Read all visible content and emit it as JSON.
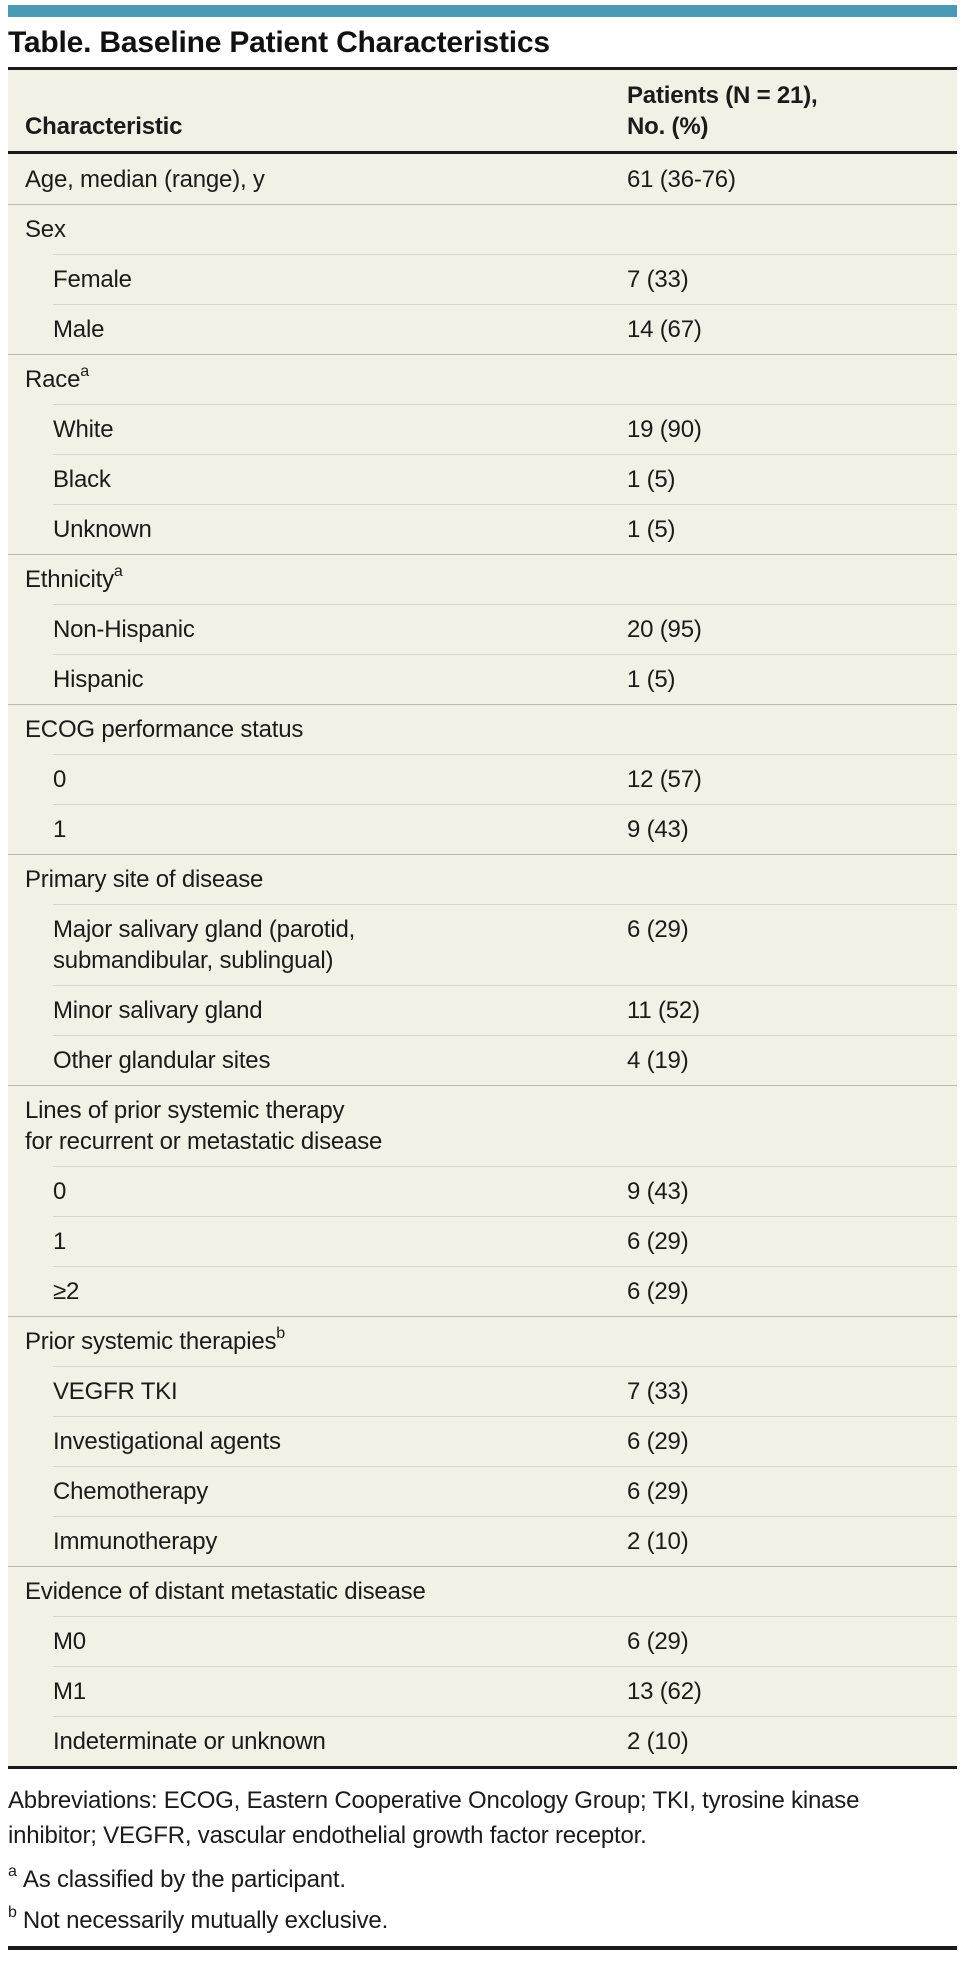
{
  "style": {
    "accent_color": "#4a9ab4",
    "table_background": "#f3f1e6",
    "rule_color": "#1a1a1a"
  },
  "title": "Table. Baseline Patient Characteristics",
  "table": {
    "header": {
      "col1": "Characteristic",
      "col2": "Patients (N = 21),\nNo. (%)"
    },
    "rows": [
      {
        "label": "Age, median (range), y",
        "value": "61 (36-76)",
        "indent": 0
      },
      {
        "label": "Sex",
        "value": "",
        "indent": 0
      },
      {
        "label": "Female",
        "value": "7 (33)",
        "indent": 1
      },
      {
        "label": "Male",
        "value": "14 (67)",
        "indent": 1
      },
      {
        "label": "Race",
        "sup": "a",
        "value": "",
        "indent": 0
      },
      {
        "label": "White",
        "value": "19 (90)",
        "indent": 1
      },
      {
        "label": "Black",
        "value": "1 (5)",
        "indent": 1
      },
      {
        "label": "Unknown",
        "value": "1 (5)",
        "indent": 1
      },
      {
        "label": "Ethnicity",
        "sup": "a",
        "value": "",
        "indent": 0
      },
      {
        "label": "Non-Hispanic",
        "value": "20 (95)",
        "indent": 1
      },
      {
        "label": "Hispanic",
        "value": "1 (5)",
        "indent": 1
      },
      {
        "label": "ECOG performance status",
        "value": "",
        "indent": 0
      },
      {
        "label": "0",
        "value": "12 (57)",
        "indent": 1
      },
      {
        "label": "1",
        "value": "9 (43)",
        "indent": 1
      },
      {
        "label": "Primary site of disease",
        "value": "",
        "indent": 0
      },
      {
        "label": "Major salivary gland (parotid,\nsubmandibular, sublingual)",
        "value": "6 (29)",
        "indent": 1
      },
      {
        "label": "Minor salivary gland",
        "value": "11 (52)",
        "indent": 1
      },
      {
        "label": "Other glandular sites",
        "value": "4 (19)",
        "indent": 1
      },
      {
        "label": "Lines of prior systemic therapy\nfor recurrent or metastatic disease",
        "value": "",
        "indent": 0
      },
      {
        "label": "0",
        "value": "9 (43)",
        "indent": 1
      },
      {
        "label": "1",
        "value": "6 (29)",
        "indent": 1
      },
      {
        "label": "≥2",
        "value": "6 (29)",
        "indent": 1
      },
      {
        "label": "Prior systemic therapies",
        "sup": "b",
        "value": "",
        "indent": 0
      },
      {
        "label": "VEGFR TKI",
        "value": "7 (33)",
        "indent": 1
      },
      {
        "label": "Investigational agents",
        "value": "6 (29)",
        "indent": 1
      },
      {
        "label": "Chemotherapy",
        "value": "6 (29)",
        "indent": 1
      },
      {
        "label": "Immunotherapy",
        "value": "2 (10)",
        "indent": 1
      },
      {
        "label": "Evidence of distant metastatic disease",
        "value": "",
        "indent": 0
      },
      {
        "label": "M0",
        "value": "6 (29)",
        "indent": 1
      },
      {
        "label": "M1",
        "value": "13 (62)",
        "indent": 1
      },
      {
        "label": "Indeterminate or unknown",
        "value": "2 (10)",
        "indent": 1
      }
    ]
  },
  "footnotes": {
    "abbreviations": "Abbreviations: ECOG, Eastern Cooperative Oncology Group; TKI, tyrosine kinase inhibitor; VEGFR, vascular endothelial growth factor receptor.",
    "notes": [
      {
        "marker": "a",
        "text": "As classified by the participant."
      },
      {
        "marker": "b",
        "text": "Not necessarily mutually exclusive."
      }
    ]
  }
}
